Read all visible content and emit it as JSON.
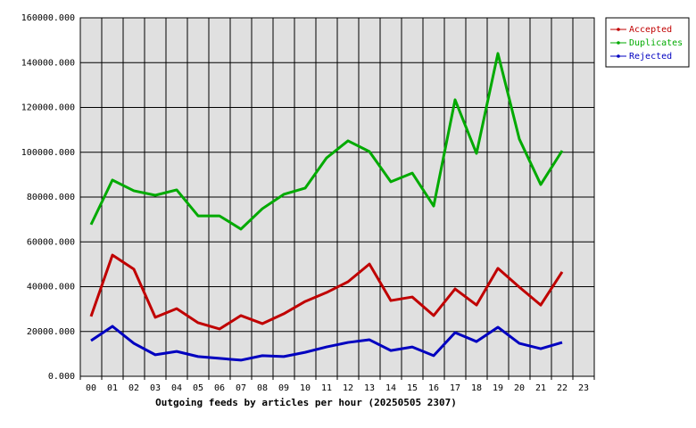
{
  "chart_data": {
    "type": "line",
    "title": "Outgoing feeds by articles per hour (20250505 2307)",
    "categories": [
      "00",
      "01",
      "02",
      "03",
      "04",
      "05",
      "06",
      "07",
      "08",
      "09",
      "10",
      "11",
      "12",
      "13",
      "14",
      "15",
      "16",
      "17",
      "18",
      "19",
      "20",
      "21",
      "22",
      "23"
    ],
    "series": [
      {
        "name": "Accepted",
        "color": "#c00000",
        "values": [
          26700,
          54100,
          47800,
          26300,
          30200,
          23900,
          21100,
          27100,
          23500,
          27900,
          33400,
          37400,
          42200,
          50100,
          33800,
          35400,
          27100,
          39000,
          31800,
          48200,
          39800,
          31800,
          46600,
          null
        ]
      },
      {
        "name": "Duplicates",
        "color": "#00aa00",
        "values": [
          67700,
          87600,
          82800,
          80800,
          83200,
          71600,
          71600,
          65700,
          74800,
          81200,
          84000,
          97500,
          105100,
          100300,
          86800,
          90700,
          76000,
          123400,
          99500,
          144100,
          105900,
          85600,
          100700,
          null
        ]
      },
      {
        "name": "Rejected",
        "color": "#0000c0",
        "values": [
          15900,
          22300,
          14700,
          9600,
          11100,
          8800,
          8000,
          7200,
          9200,
          8800,
          10700,
          13100,
          15100,
          16300,
          11500,
          13100,
          9200,
          19500,
          15500,
          21900,
          14700,
          12300,
          15100,
          null
        ]
      }
    ],
    "ylim": [
      0,
      160000
    ],
    "yticks": [
      {
        "value": 0,
        "label": "0.000"
      },
      {
        "value": 20000,
        "label": "20000.000"
      },
      {
        "value": 40000,
        "label": "40000.000"
      },
      {
        "value": 60000,
        "label": "60000.000"
      },
      {
        "value": 80000,
        "label": "80000.000"
      },
      {
        "value": 100000,
        "label": "100000.000"
      },
      {
        "value": 120000,
        "label": "120000.000"
      },
      {
        "value": 140000,
        "label": "140000.000"
      },
      {
        "value": 160000,
        "label": "160000.000"
      }
    ],
    "grid": true
  }
}
